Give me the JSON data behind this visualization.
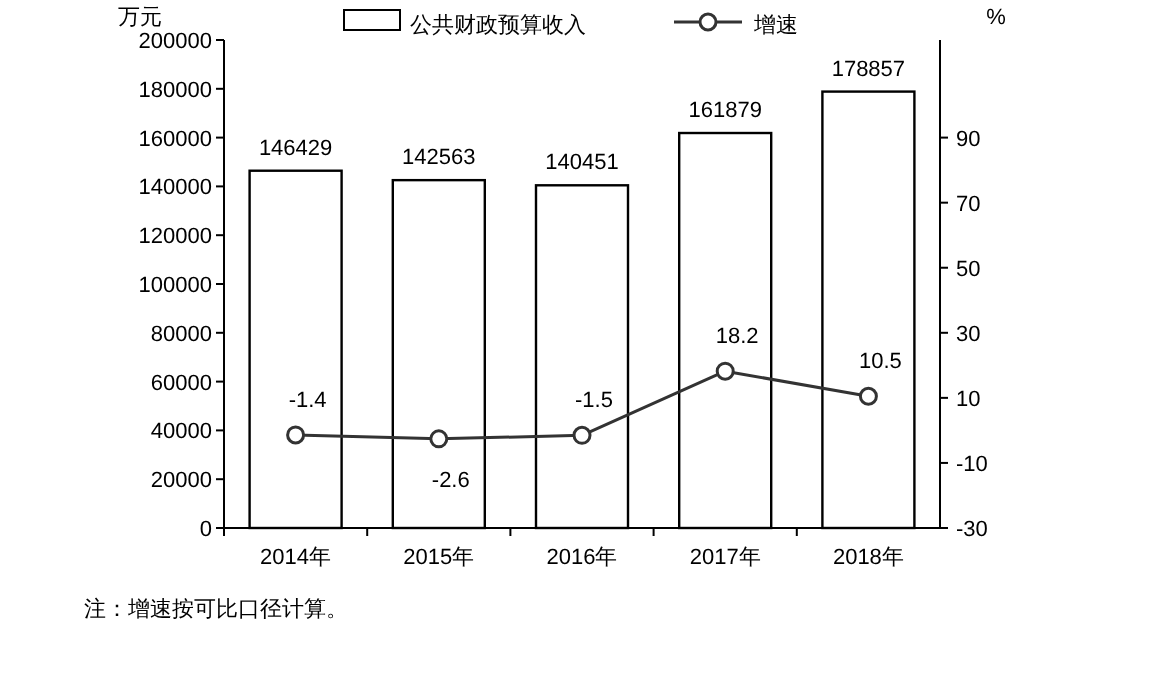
{
  "chart_data": {
    "type": "bar",
    "categories": [
      "2014年",
      "2015年",
      "2016年",
      "2017年",
      "2018年"
    ],
    "series": [
      {
        "name": "公共财政预算收入",
        "color": "#ffffff",
        "values": [
          146429,
          142563,
          140451,
          161879,
          178857
        ]
      },
      {
        "name": "增速",
        "type": "line",
        "axis": "y2",
        "color": "#333333",
        "values": [
          -1.4,
          -2.6,
          -1.5,
          18.2,
          10.5
        ]
      }
    ],
    "ylabel": "万元",
    "y2label": "%",
    "ylim": [
      0,
      200000
    ],
    "yticks": [
      0,
      20000,
      40000,
      60000,
      80000,
      100000,
      120000,
      140000,
      160000,
      180000,
      200000
    ],
    "y2lim": [
      -30,
      120
    ],
    "y2ticks": [
      -30,
      -10,
      10,
      30,
      50,
      70,
      90
    ],
    "data_labels": true,
    "legend": "top",
    "marker": "circle",
    "line_style": "solid",
    "annotations": [
      "注：增速按可比口径计算。"
    ]
  }
}
